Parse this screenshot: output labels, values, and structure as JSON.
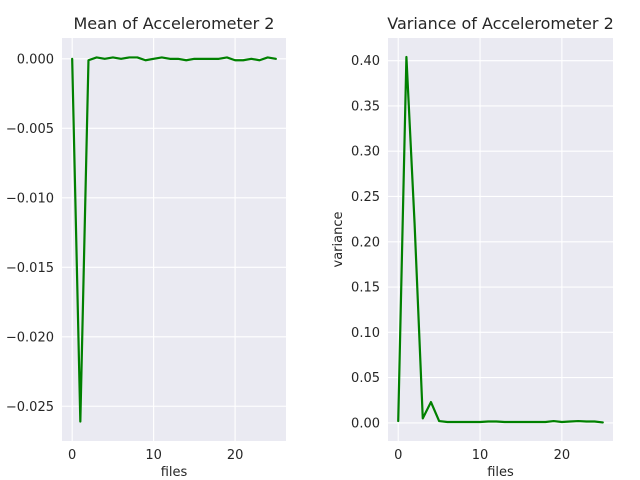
{
  "chart_data": [
    {
      "type": "line",
      "title": "Mean of Accelerometer 2",
      "xlabel": "files",
      "ylabel": "",
      "xlim": [
        -1.25,
        26.25
      ],
      "ylim": [
        -0.0275,
        0.0015
      ],
      "xticks": [
        0,
        10,
        20
      ],
      "xtick_labels": [
        "0",
        "10",
        "20"
      ],
      "yticks": [
        0.0,
        -0.005,
        -0.01,
        -0.015,
        -0.02,
        -0.025
      ],
      "ytick_labels": [
        "0.000",
        "−0.005",
        "−0.010",
        "−0.015",
        "−0.020",
        "−0.025"
      ],
      "grid": true,
      "line_color": "#008000",
      "series": [
        {
          "x": [
            0,
            1,
            2,
            3,
            4,
            5,
            6,
            7,
            8,
            9,
            10,
            11,
            12,
            13,
            14,
            15,
            16,
            17,
            18,
            19,
            20,
            21,
            22,
            23,
            24,
            25
          ],
          "y": [
            0.0,
            -0.0261,
            -0.0001,
            0.0001,
            0.0,
            0.0001,
            0.0,
            0.0001,
            0.0001,
            -0.0001,
            0.0,
            0.0001,
            0.0,
            0.0,
            -0.0001,
            0.0,
            0.0,
            0.0,
            0.0,
            0.0001,
            -0.0001,
            -0.0001,
            0.0,
            -0.0001,
            0.0001,
            0.0
          ]
        }
      ]
    },
    {
      "type": "line",
      "title": "Variance of Accelerometer 2",
      "xlabel": "files",
      "ylabel": "variance",
      "xlim": [
        -1.25,
        26.25
      ],
      "ylim": [
        -0.02,
        0.425
      ],
      "xticks": [
        0,
        10,
        20
      ],
      "xtick_labels": [
        "0",
        "10",
        "20"
      ],
      "yticks": [
        0.0,
        0.05,
        0.1,
        0.15,
        0.2,
        0.25,
        0.3,
        0.35,
        0.4
      ],
      "ytick_labels": [
        "0.00",
        "0.05",
        "0.10",
        "0.15",
        "0.20",
        "0.25",
        "0.30",
        "0.35",
        "0.40"
      ],
      "grid": true,
      "line_color": "#008000",
      "series": [
        {
          "x": [
            0,
            1,
            2,
            3,
            4,
            5,
            6,
            7,
            8,
            9,
            10,
            11,
            12,
            13,
            14,
            15,
            16,
            17,
            18,
            19,
            20,
            21,
            22,
            23,
            24,
            25
          ],
          "y": [
            0.002,
            0.404,
            0.22,
            0.005,
            0.023,
            0.002,
            0.001,
            0.001,
            0.001,
            0.001,
            0.001,
            0.0015,
            0.0015,
            0.001,
            0.001,
            0.001,
            0.001,
            0.001,
            0.001,
            0.002,
            0.001,
            0.0015,
            0.002,
            0.0015,
            0.0015,
            0.0005
          ]
        }
      ]
    }
  ]
}
